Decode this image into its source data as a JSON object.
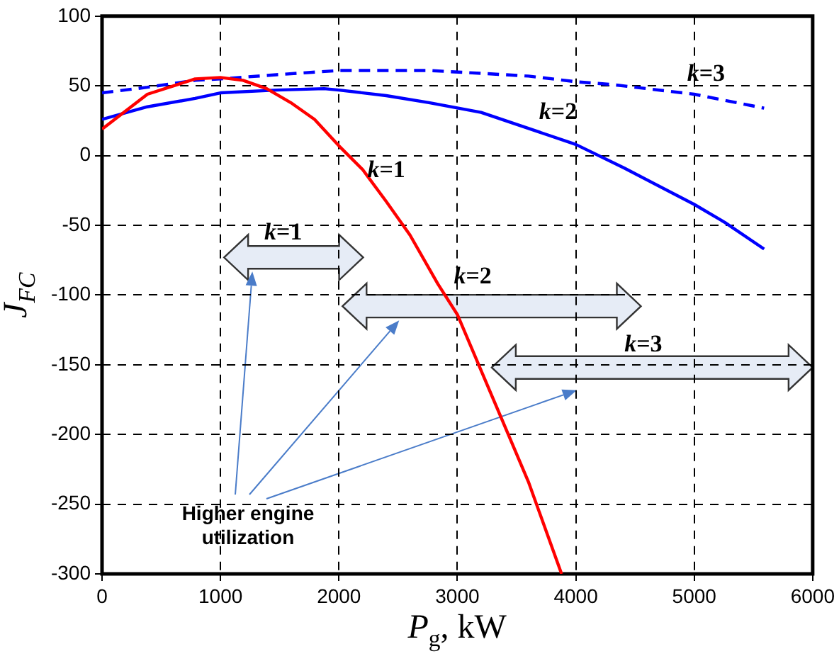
{
  "chart_data": {
    "type": "line",
    "xlabel": "P$_{g}$, kW",
    "ylabel": "J$_{FC}$",
    "xlim": [
      0,
      6000
    ],
    "xticks": [
      0,
      1000,
      2000,
      3000,
      4000,
      5000,
      6000
    ],
    "ylim": [
      -300,
      100
    ],
    "yticks": [
      -300,
      -250,
      -200,
      -150,
      -100,
      -50,
      0,
      50,
      100
    ],
    "grid": true,
    "legend": false,
    "marker": "none",
    "series": [
      {
        "color": "#ff0000",
        "line_style": "solid",
        "x": [
          0,
          383,
          786,
          1000,
          1190,
          1390,
          1593,
          1794,
          2000,
          2200,
          2400,
          2600,
          2835,
          3000,
          3180,
          3360,
          3600,
          3880
        ],
        "values": [
          19,
          44,
          55,
          56,
          54,
          48,
          38,
          26,
          7,
          -10,
          -33,
          -57,
          -92,
          -114,
          -150,
          -186,
          -234,
          -300
        ]
      },
      {
        "color": "#0000ff",
        "line_style": "solid",
        "x": [
          0,
          383,
          786,
          1000,
          1472,
          1875,
          2000,
          2400,
          2760,
          3200,
          4000,
          4410,
          5000,
          5260,
          5590
        ],
        "values": [
          26,
          35,
          41,
          45,
          47,
          48,
          47,
          43,
          38,
          31,
          8,
          -9,
          -35,
          -48,
          -67
        ]
      },
      {
        "color": "#0000ff",
        "line_style": "dashed",
        "x": [
          0,
          383,
          786,
          1000,
          1472,
          2000,
          2760,
          3200,
          3600,
          4000,
          4300,
          5000,
          5590
        ],
        "values": [
          45,
          49,
          54,
          55,
          58,
          61,
          61,
          59,
          57,
          53,
          51,
          44,
          34
        ]
      }
    ],
    "annotations": [
      "k=1",
      "k=2",
      "k=3",
      "k=1",
      "k=2",
      "k=3",
      "Higher engine utilization"
    ]
  }
}
